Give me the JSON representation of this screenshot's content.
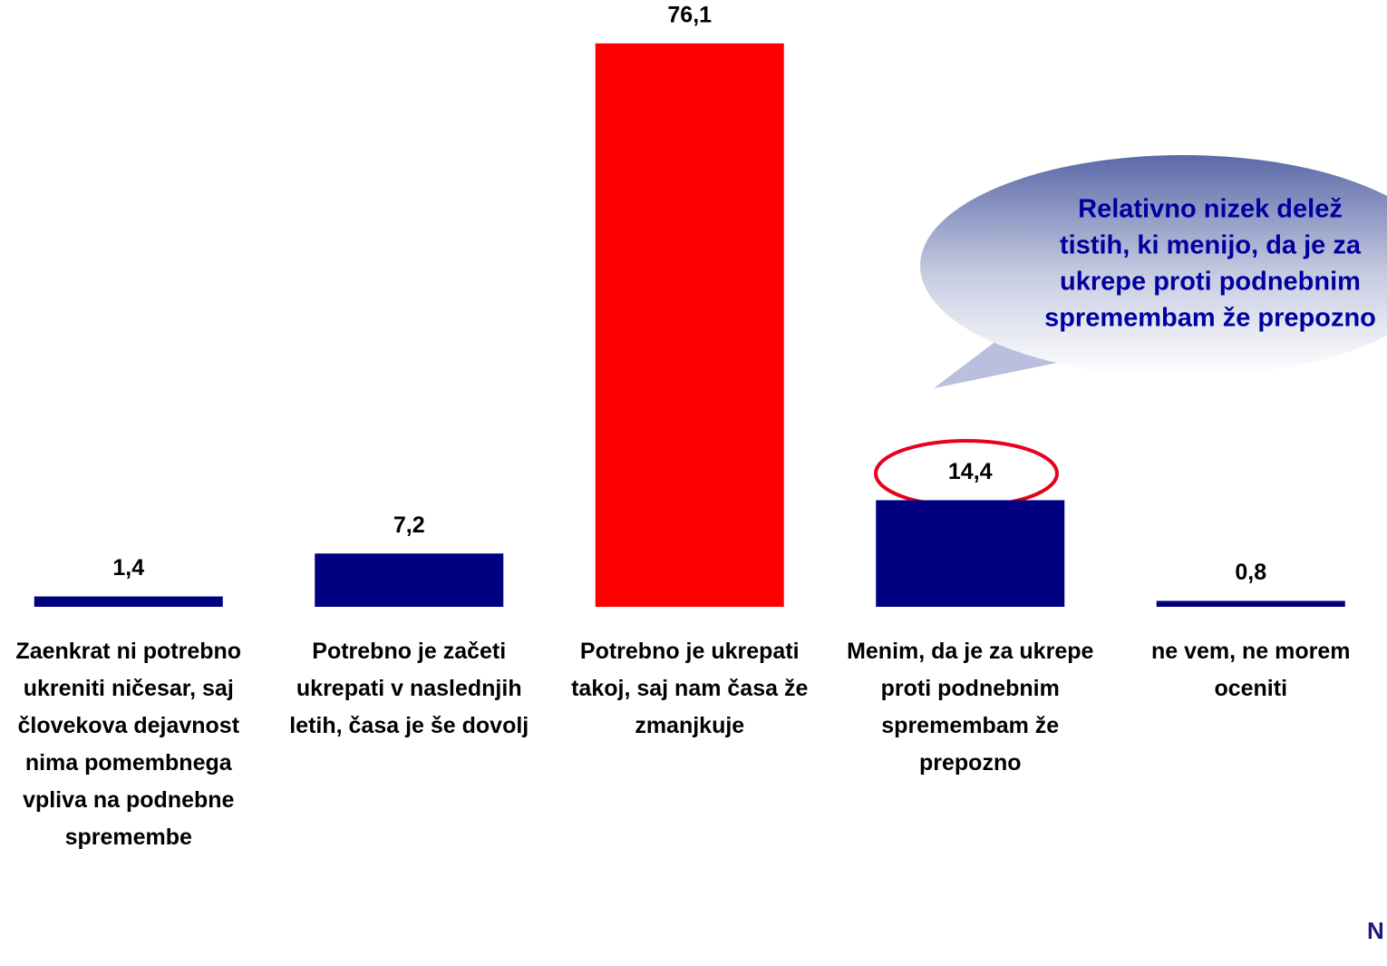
{
  "chart_data": {
    "type": "bar",
    "categories": [
      "Zaenkrat ni potrebno ukreniti ničesar, saj človekova dejavnost nima pomembnega vpliva na podnebne spremembe",
      "Potrebno je začeti ukrepati v naslednjih letih, časa je še dovolj",
      "Potrebno je ukrepati takoj, saj nam časa že zmanjkuje",
      "Menim, da je za ukrepe proti podnebnim spremembam že prepozno",
      "ne vem, ne morem oceniti"
    ],
    "values": [
      1.4,
      7.2,
      76.1,
      14.4,
      0.8
    ],
    "value_labels": [
      "1,4",
      "7,2",
      "76,1",
      "14,4",
      "0,8"
    ],
    "colors": [
      "#000080",
      "#000080",
      "#ff0000",
      "#000080",
      "#000080"
    ],
    "ylim": [
      0,
      80
    ],
    "annotation": [
      "Relativno nizek delež",
      "tistih, ki menijo, da je za",
      "ukrepe proti podnebnim",
      "spremembam že prepozno"
    ],
    "footnote": "N"
  }
}
